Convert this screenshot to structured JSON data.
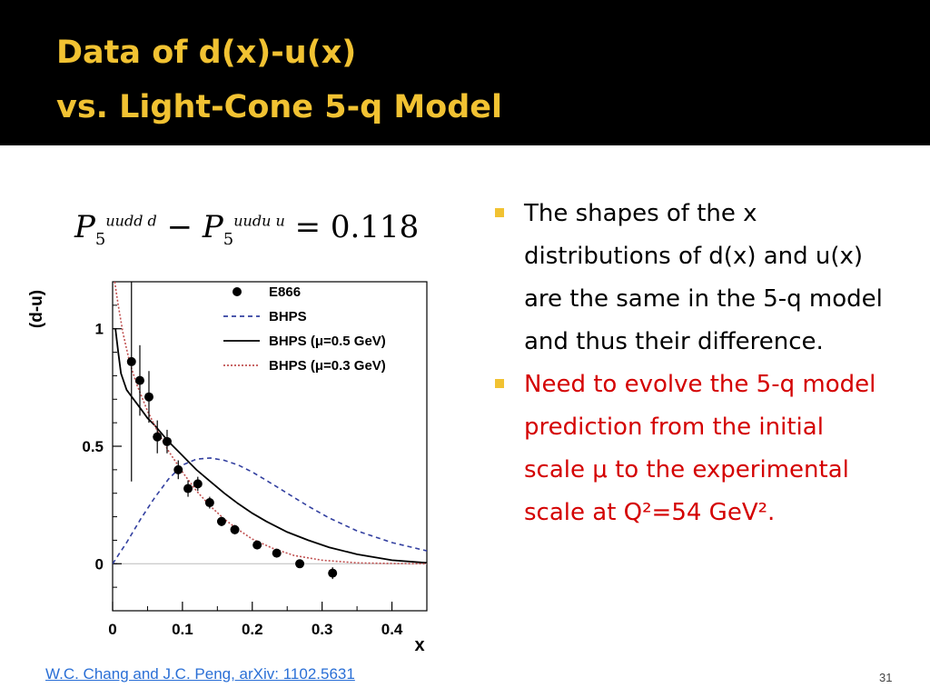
{
  "slide": {
    "title_line1": "Data of d(x)-u(x)",
    "title_line2": "vs. Light-Cone 5-q Model",
    "formula": {
      "P": "P",
      "sub": "5",
      "sup1": "uudd d",
      "sup2": "uudu u",
      "minus": "−",
      "equals": "=",
      "value": "0.118"
    },
    "bullets": [
      {
        "text": "The shapes of the x distributions of d(x) and u(x) are the same in the 5-q model and thus their difference.",
        "color": "#000000"
      },
      {
        "text": "Need to evolve the 5-q model prediction from the initial scale μ to the experimental scale at Q²=54 GeV².",
        "color": "#d40000"
      }
    ],
    "citation": "W.C. Chang and J.C. Peng, arXiv: 1102.5631",
    "page_number": "31",
    "accent_color": "#f1c232"
  },
  "chart_data": {
    "type": "scatter",
    "xlabel": "x",
    "ylabel": "(d-u)",
    "xlim": [
      0,
      0.45
    ],
    "ylim": [
      -0.2,
      1.2
    ],
    "x_ticks": [
      "0",
      "0.1",
      "0.2",
      "0.3",
      "0.4"
    ],
    "y_ticks": [
      "0",
      "0.5",
      "1"
    ],
    "legend": [
      "E866",
      "BHPS",
      "BHPS (μ=0.5 GeV)",
      "BHPS (μ=0.3 GeV)"
    ],
    "legend_position": "top-right",
    "points": [
      {
        "x": 0.027,
        "y": 0.86,
        "err": 0.51
      },
      {
        "x": 0.039,
        "y": 0.78,
        "err": 0.15
      },
      {
        "x": 0.052,
        "y": 0.71,
        "err": 0.11
      },
      {
        "x": 0.064,
        "y": 0.54,
        "err": 0.07
      },
      {
        "x": 0.078,
        "y": 0.52,
        "err": 0.05
      },
      {
        "x": 0.094,
        "y": 0.4,
        "err": 0.04
      },
      {
        "x": 0.108,
        "y": 0.32,
        "err": 0.035
      },
      {
        "x": 0.122,
        "y": 0.34,
        "err": 0.03
      },
      {
        "x": 0.139,
        "y": 0.26,
        "err": 0.025
      },
      {
        "x": 0.156,
        "y": 0.18,
        "err": 0.02
      },
      {
        "x": 0.175,
        "y": 0.145,
        "err": 0.02
      },
      {
        "x": 0.207,
        "y": 0.08,
        "err": 0.015
      },
      {
        "x": 0.235,
        "y": 0.045,
        "err": 0.015
      },
      {
        "x": 0.268,
        "y": 0.0,
        "err": 0.015
      },
      {
        "x": 0.315,
        "y": -0.04,
        "err": 0.025
      }
    ],
    "series": [
      {
        "name": "BHPS",
        "style": "dashed",
        "color": "#3340a0",
        "x": [
          0,
          0.02,
          0.04,
          0.06,
          0.08,
          0.1,
          0.12,
          0.14,
          0.16,
          0.18,
          0.2,
          0.22,
          0.25,
          0.28,
          0.31,
          0.35,
          0.4,
          0.45
        ],
        "y": [
          0,
          0.09,
          0.19,
          0.28,
          0.36,
          0.42,
          0.445,
          0.45,
          0.44,
          0.42,
          0.39,
          0.355,
          0.3,
          0.245,
          0.195,
          0.14,
          0.09,
          0.055
        ]
      },
      {
        "name": "BHPS (μ=0.5 GeV)",
        "style": "solid",
        "color": "#000000",
        "x": [
          0.004,
          0.008,
          0.012,
          0.02,
          0.03,
          0.04,
          0.05,
          0.06,
          0.08,
          0.1,
          0.12,
          0.14,
          0.16,
          0.18,
          0.2,
          0.22,
          0.25,
          0.28,
          0.31,
          0.35,
          0.4,
          0.45
        ],
        "y": [
          1.0,
          0.9,
          0.81,
          0.74,
          0.7,
          0.66,
          0.62,
          0.59,
          0.52,
          0.46,
          0.4,
          0.35,
          0.3,
          0.255,
          0.215,
          0.18,
          0.135,
          0.1,
          0.07,
          0.04,
          0.015,
          0.004
        ]
      },
      {
        "name": "BHPS (μ=0.3 GeV)",
        "style": "dotted",
        "color": "#c05050",
        "x": [
          0.003,
          0.008,
          0.015,
          0.025,
          0.035,
          0.05,
          0.065,
          0.08,
          0.1,
          0.12,
          0.14,
          0.16,
          0.18,
          0.2,
          0.23,
          0.26,
          0.3,
          0.35,
          0.4,
          0.45
        ],
        "y": [
          1.2,
          1.1,
          0.98,
          0.85,
          0.76,
          0.65,
          0.56,
          0.48,
          0.39,
          0.31,
          0.245,
          0.19,
          0.145,
          0.105,
          0.065,
          0.035,
          0.015,
          0.004,
          0.001,
          0.0
        ]
      }
    ]
  }
}
